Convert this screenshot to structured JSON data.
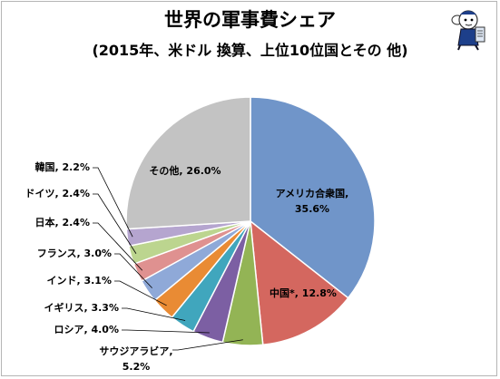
{
  "header": {
    "title": "世界の軍事費シェア",
    "subtitle": "(2015年、米ドル 換算、上位10位国とその 他)"
  },
  "chart_data": {
    "type": "pie",
    "title": "世界の軍事費シェア",
    "subtitle": "(2015年、米ドル 換算、上位10位国とその 他)",
    "slices": [
      {
        "label": "アメリカ合衆国",
        "value": 35.6,
        "value_text": "35.6%",
        "color": "#7095c9"
      },
      {
        "label": "中国*",
        "value": 12.8,
        "value_text": "12.8%",
        "color": "#d4675f"
      },
      {
        "label": "サウジアラビア",
        "value": 5.2,
        "value_text": "5.2%",
        "color": "#93b455"
      },
      {
        "label": "ロシア",
        "value": 4.0,
        "value_text": "4.0%",
        "color": "#7c5fa3"
      },
      {
        "label": "イギリス",
        "value": 3.3,
        "value_text": "3.3%",
        "color": "#40a6bd"
      },
      {
        "label": "インド",
        "value": 3.1,
        "value_text": "3.1%",
        "color": "#e98b34"
      },
      {
        "label": "フランス",
        "value": 3.0,
        "value_text": "3.0%",
        "color": "#8fa9d8"
      },
      {
        "label": "日本",
        "value": 2.4,
        "value_text": "2.4%",
        "color": "#df9190"
      },
      {
        "label": "ドイツ",
        "value": 2.4,
        "value_text": "2.4%",
        "color": "#bcd58f"
      },
      {
        "label": "韓国",
        "value": 2.2,
        "value_text": "2.2%",
        "color": "#b5a5cf"
      },
      {
        "label": "その他",
        "value": 26.0,
        "value_text": "26.0%",
        "color": "#c3c3c3"
      }
    ],
    "start_angle": "12 o'clock",
    "direction": "clockwise",
    "legend": "none"
  }
}
